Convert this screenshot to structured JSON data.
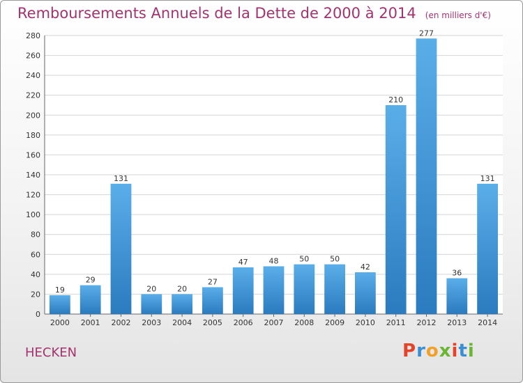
{
  "header": {
    "title": "Remboursements Annuels de la Dette de 2000 à 2014",
    "unit": "(en milliers d'€)"
  },
  "footer": {
    "commune": "HECKEN",
    "brand_letters": [
      "P",
      "r",
      "o",
      "x",
      "i",
      "t",
      "i"
    ],
    "brand_colors": [
      "#e2432a",
      "#3a8fd3",
      "#f0a12a",
      "#6ab533",
      "#e2432a",
      "#3a8fd3",
      "#6ab533"
    ]
  },
  "colors": {
    "title": "#a3336e",
    "bar_top": "#5aaee8",
    "bar_bottom": "#2a7bbf",
    "grid": "#d4d4d4"
  },
  "chart_data": {
    "type": "bar",
    "title": "Remboursements Annuels de la Dette de 2000 à 2014",
    "categories": [
      "2000",
      "2001",
      "2002",
      "2003",
      "2004",
      "2005",
      "2006",
      "2007",
      "2008",
      "2009",
      "2010",
      "2011",
      "2012",
      "2013",
      "2014"
    ],
    "values": [
      19,
      29,
      131,
      20,
      20,
      27,
      47,
      48,
      50,
      50,
      42,
      210,
      277,
      36,
      131
    ],
    "ylim": [
      0,
      280
    ],
    "yticks": [
      0,
      20,
      40,
      60,
      80,
      100,
      120,
      140,
      160,
      180,
      200,
      220,
      240,
      260,
      280
    ],
    "grid": true,
    "xlabel": "",
    "ylabel": ""
  }
}
